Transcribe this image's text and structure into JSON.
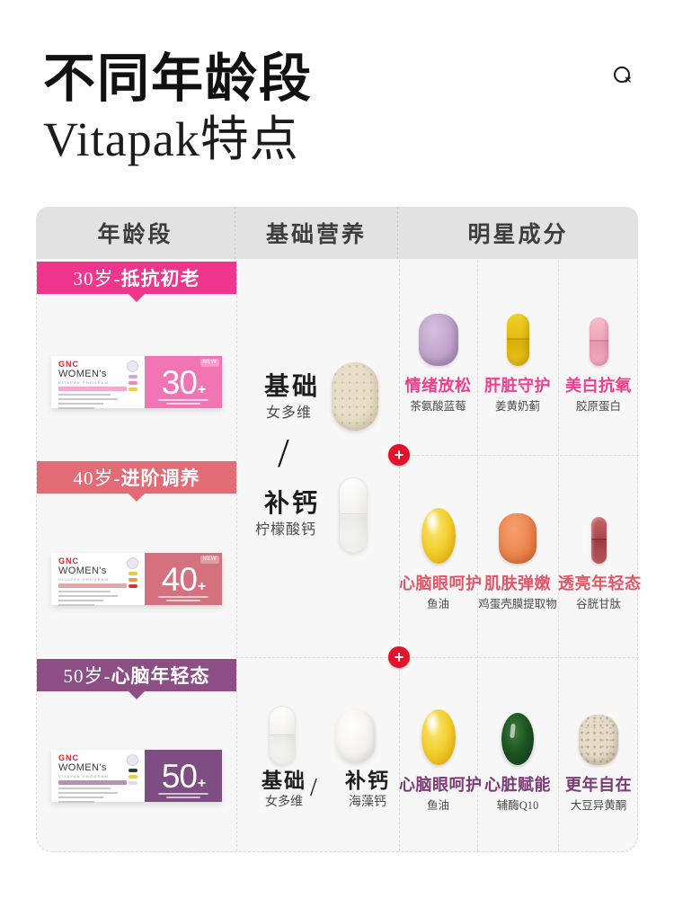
{
  "page": {
    "title_line1": "不同年龄段",
    "title_line2": "Vitapak特点"
  },
  "icons": {
    "zoom": "magnifier-x-icon",
    "plus": "plus-circle-icon"
  },
  "colors": {
    "banner_30": "#f0358c",
    "banner_40": "#e26c76",
    "banner_50": "#8c4e84",
    "panel_30": "#f175b5",
    "panel_40": "#d5707e",
    "panel_50": "#7e4d82",
    "star_title_row1": "#f33c8c",
    "star_title_row2": "#e25668",
    "star_title_row3": "#7c3b76",
    "plus_red": "#e4122b",
    "header_bg": "#e3e2e2"
  },
  "table": {
    "columns": [
      "年龄段",
      "基础营养",
      "明星成分"
    ],
    "plus_symbol": "+",
    "slash": "/",
    "sections": [
      {
        "banner_prefix": "30岁-",
        "banner_title": "抵抗初老",
        "product": {
          "brand": "GNC",
          "line": "WOMEN's",
          "program": "VITAPAK PROGRAM",
          "age_number": "30",
          "age_plus": "+",
          "badge": "NEW"
        }
      },
      {
        "banner_prefix": "40岁-",
        "banner_title": "进阶调养",
        "product": {
          "brand": "GNC",
          "line": "WOMEN's",
          "program": "VITAPAK PROGRAM",
          "age_number": "40",
          "age_plus": "+",
          "badge": "NEW"
        }
      },
      {
        "banner_prefix": "50岁-",
        "banner_title": "心脑年轻态",
        "product": {
          "brand": "GNC",
          "line": "WOMEN's",
          "program": "VITAPAK PROGRAM",
          "age_number": "50",
          "age_plus": "+",
          "badge": ""
        }
      }
    ],
    "base_nutrition": {
      "shared": {
        "item1": {
          "title": "基础",
          "subtitle": "女多维",
          "pill_icon": "beige-oval-tablet-icon"
        },
        "item2": {
          "title": "补钙",
          "subtitle": "柠檬酸钙",
          "pill_icon": "white-capsule-icon"
        }
      },
      "age50": {
        "item1": {
          "title": "基础",
          "subtitle": "女多维",
          "pill_icon": "white-capsule-icon"
        },
        "item2": {
          "title": "补钙",
          "subtitle": "海藻钙",
          "pill_icon": "white-oval-tablet-icon"
        }
      }
    },
    "star_rows": [
      {
        "items": [
          {
            "title": "情绪放松",
            "subtitle": "茶氨酸蓝莓",
            "pill_icon": "lilac-tablet-icon"
          },
          {
            "title": "肝脏守护",
            "subtitle": "姜黄奶蓟",
            "pill_icon": "yellow-capsule-icon"
          },
          {
            "title": "美白抗氧",
            "subtitle": "胶原蛋白",
            "pill_icon": "pink-capsule-icon"
          }
        ]
      },
      {
        "items": [
          {
            "title": "心脑眼呵护",
            "subtitle": "鱼油",
            "pill_icon": "yellow-softgel-icon"
          },
          {
            "title": "肌肤弹嫩",
            "subtitle": "鸡蛋壳膜提取物",
            "pill_icon": "orange-tablet-icon"
          },
          {
            "title": "透亮年轻态",
            "subtitle": "谷胱甘肽",
            "pill_icon": "maroon-capsule-icon"
          }
        ]
      },
      {
        "items": [
          {
            "title": "心脑眼呵护",
            "subtitle": "鱼油",
            "pill_icon": "yellow-softgel-icon"
          },
          {
            "title": "心脏赋能",
            "subtitle": "辅酶Q10",
            "pill_icon": "green-softgel-icon"
          },
          {
            "title": "更年自在",
            "subtitle": "大豆异黄酮",
            "pill_icon": "speckled-tablet-icon"
          }
        ]
      }
    ]
  }
}
